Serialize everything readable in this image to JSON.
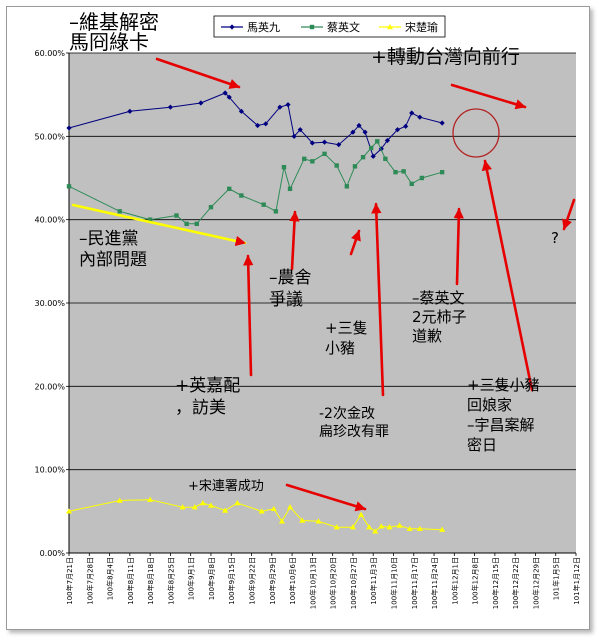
{
  "chart_data": {
    "type": "line",
    "ylim": [
      0,
      60
    ],
    "yticks": [
      "0.00%",
      "10.00%",
      "20.00%",
      "30.00%",
      "40.00%",
      "50.00%",
      "60.00%"
    ],
    "xticks": [
      "100年7月21日",
      "100年7月28日",
      "100年8月4日",
      "100年8月11日",
      "100年8月18日",
      "100年8月25日",
      "100年9月1日",
      "100年9月8日",
      "100年9月15日",
      "100年9月22日",
      "100年9月29日",
      "100年10月6日",
      "100年10月13日",
      "100年10月20日",
      "100年10月27日",
      "100年11月3日",
      "100年11月10日",
      "100年11月17日",
      "100年11月24日",
      "100年12月1日",
      "100年12月8日",
      "100年12月15日",
      "100年12月22日",
      "100年12月29日",
      "101年1月5日",
      "101年1月12日"
    ],
    "grid": true,
    "legend_position": "top",
    "colors": {
      "plot_bg": "#c0c0c0",
      "grid": "#000000"
    },
    "series": [
      {
        "name": "馬英九",
        "color": "#000080",
        "marker": "diamond",
        "points": [
          [
            0,
            51
          ],
          [
            3,
            53
          ],
          [
            5,
            53.5
          ],
          [
            6.5,
            54
          ],
          [
            7.7,
            55.2
          ],
          [
            7.9,
            54.7
          ],
          [
            8.5,
            53
          ],
          [
            9.3,
            51.3
          ],
          [
            9.7,
            51.5
          ],
          [
            10.4,
            53.5
          ],
          [
            10.8,
            53.8
          ],
          [
            11.1,
            50
          ],
          [
            11.4,
            50.8
          ],
          [
            12,
            49.2
          ],
          [
            12.6,
            49.3
          ],
          [
            13.3,
            49
          ],
          [
            14,
            50.5
          ],
          [
            14.3,
            51.3
          ],
          [
            14.6,
            50.5
          ],
          [
            15,
            47.6
          ],
          [
            15.4,
            48.5
          ],
          [
            15.7,
            49.5
          ],
          [
            16.2,
            50.8
          ],
          [
            16.6,
            51.2
          ],
          [
            16.9,
            52.8
          ],
          [
            17.3,
            52.3
          ],
          [
            18.4,
            51.6
          ]
        ]
      },
      {
        "name": "蔡英文",
        "color": "#2e8b57",
        "marker": "square",
        "points": [
          [
            0,
            44
          ],
          [
            2.5,
            41
          ],
          [
            4,
            40
          ],
          [
            5.3,
            40.5
          ],
          [
            5.8,
            39.5
          ],
          [
            6.3,
            39.5
          ],
          [
            7,
            41.5
          ],
          [
            7.9,
            43.7
          ],
          [
            8.5,
            42.9
          ],
          [
            9.6,
            41.8
          ],
          [
            10.2,
            41
          ],
          [
            10.6,
            46.3
          ],
          [
            10.9,
            43.7
          ],
          [
            11.6,
            47.3
          ],
          [
            12,
            47
          ],
          [
            12.6,
            47.9
          ],
          [
            13.2,
            46.5
          ],
          [
            13.7,
            44
          ],
          [
            14.1,
            46.4
          ],
          [
            14.5,
            47.5
          ],
          [
            14.9,
            48.6
          ],
          [
            15.2,
            49.4
          ],
          [
            15.6,
            47.3
          ],
          [
            16.1,
            45.7
          ],
          [
            16.5,
            45.8
          ],
          [
            16.9,
            44.3
          ],
          [
            17.4,
            45
          ],
          [
            18.4,
            45.7
          ]
        ]
      },
      {
        "name": "宋楚瑜",
        "color": "#ffff00",
        "marker": "triangle",
        "points": [
          [
            0,
            5
          ],
          [
            2.5,
            6.3
          ],
          [
            4,
            6.4
          ],
          [
            5.6,
            5.5
          ],
          [
            6.2,
            5.5
          ],
          [
            6.6,
            6
          ],
          [
            7,
            5.7
          ],
          [
            7.7,
            5.1
          ],
          [
            8.3,
            6
          ],
          [
            9.5,
            5
          ],
          [
            10.1,
            5.3
          ],
          [
            10.5,
            3.8
          ],
          [
            10.9,
            5.5
          ],
          [
            11.5,
            3.9
          ],
          [
            12.3,
            3.8
          ],
          [
            13.2,
            3.1
          ],
          [
            14,
            3.1
          ],
          [
            14.4,
            4.6
          ],
          [
            14.8,
            3.1
          ],
          [
            15.1,
            2.6
          ],
          [
            15.4,
            3.2
          ],
          [
            15.8,
            3.1
          ],
          [
            16.3,
            3.3
          ],
          [
            16.8,
            2.9
          ],
          [
            17.3,
            2.9
          ],
          [
            18.4,
            2.8
          ]
        ]
      }
    ],
    "annotations": [
      {
        "lines": [
          "–維基解密",
          "馬冏綠卡"
        ],
        "color": "#000000"
      },
      {
        "lines": [
          "+轉動台灣向前行"
        ],
        "color": "#000000"
      },
      {
        "lines": [
          "–民進黨",
          "內部問題"
        ],
        "color": "#000000"
      },
      {
        "lines": [
          "?"
        ],
        "color": "#000000"
      },
      {
        "lines": [
          "–農舍",
          "爭議"
        ],
        "color": "#000000"
      },
      {
        "lines": [
          "–蔡英文",
          "2元柿子",
          "道歉"
        ],
        "color": "#000000"
      },
      {
        "lines": [
          "+三隻",
          "小豬"
        ],
        "color": "#000000"
      },
      {
        "lines": [
          "+英嘉配",
          "，訪美"
        ],
        "color": "#000000"
      },
      {
        "lines": [
          "-2次金改",
          "扁珍改有罪"
        ],
        "color": "#000000"
      },
      {
        "lines": [
          "+三隻小豬",
          "回娘家",
          "–宇昌案解",
          "密日"
        ],
        "color": "#000000"
      },
      {
        "lines": [
          "+宋連署成功"
        ],
        "color": "#000000"
      }
    ]
  }
}
